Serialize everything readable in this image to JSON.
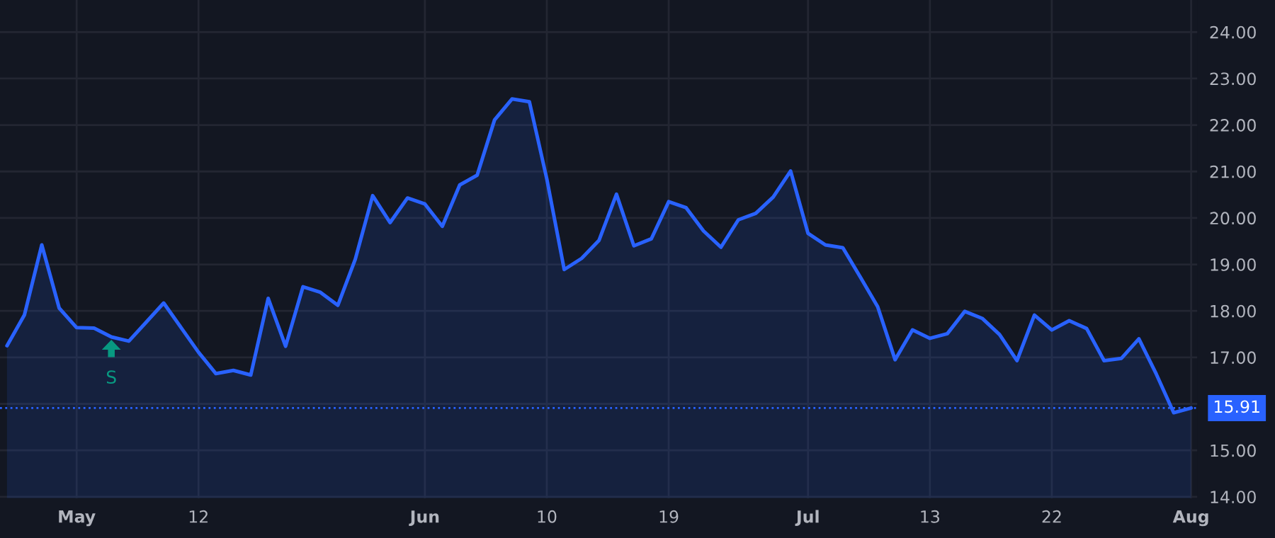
{
  "chart_data": {
    "type": "area",
    "categories": [
      null,
      null,
      null,
      null,
      "May",
      null,
      null,
      null,
      null,
      null,
      null,
      "12",
      null,
      null,
      null,
      null,
      null,
      null,
      null,
      null,
      null,
      null,
      null,
      null,
      "Jun",
      null,
      null,
      null,
      null,
      null,
      null,
      "10",
      null,
      null,
      null,
      null,
      null,
      null,
      "19",
      null,
      null,
      null,
      null,
      null,
      null,
      null,
      "Jul",
      null,
      null,
      null,
      null,
      null,
      null,
      "13",
      null,
      null,
      null,
      null,
      null,
      null,
      "22",
      null,
      null,
      null,
      null,
      null,
      null,
      null,
      "Aug"
    ],
    "series": [
      {
        "color": "#2962ff",
        "values": [
          17.25,
          17.91,
          19.42,
          18.06,
          17.64,
          17.63,
          17.44,
          17.35,
          17.76,
          18.17,
          17.64,
          17.11,
          16.65,
          16.72,
          16.62,
          18.27,
          17.24,
          18.52,
          18.4,
          18.12,
          19.11,
          20.48,
          19.9,
          20.43,
          20.3,
          19.82,
          20.71,
          20.92,
          22.11,
          22.56,
          22.5,
          20.84,
          18.89,
          19.13,
          19.52,
          20.51,
          19.4,
          19.55,
          20.35,
          20.22,
          19.72,
          19.37,
          19.96,
          20.1,
          20.45,
          21.01,
          19.67,
          19.42,
          19.36,
          18.73,
          18.09,
          16.95,
          17.59,
          17.41,
          17.51,
          17.99,
          17.84,
          17.49,
          16.93,
          17.91,
          17.59,
          17.79,
          17.62,
          16.93,
          16.98,
          17.4,
          16.64,
          15.81,
          15.91
        ]
      }
    ],
    "ylim": [
      13.97,
      24.69
    ],
    "yticks": [
      {
        "value": 14,
        "label": "14.00"
      },
      {
        "value": 15,
        "label": "15.00"
      },
      {
        "value": 16,
        "label": null
      },
      {
        "value": 17,
        "label": "17.00"
      },
      {
        "value": 18,
        "label": "18.00"
      },
      {
        "value": 19,
        "label": "19.00"
      },
      {
        "value": 20,
        "label": "20.00"
      },
      {
        "value": 21,
        "label": "21.00"
      },
      {
        "value": 22,
        "label": "22.00"
      },
      {
        "value": 23,
        "label": "23.00"
      },
      {
        "value": 24,
        "label": "24.00"
      }
    ],
    "ref_lines": [
      {
        "axis": "y",
        "value": 15.91,
        "label": "15.91",
        "color": "#2962ff",
        "line_style": "dotted"
      }
    ],
    "annotations": [
      "S"
    ],
    "grid": true,
    "line_style": "solid",
    "marker": "none"
  }
}
